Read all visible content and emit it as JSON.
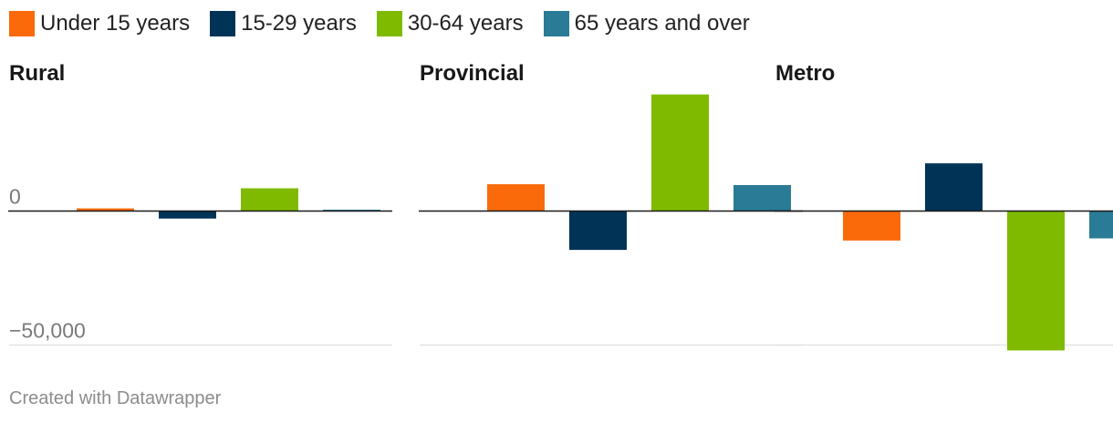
{
  "chart_data": {
    "type": "bar",
    "title": "",
    "series": [
      {
        "name": "Under 15 years",
        "color": "#fa6a0b"
      },
      {
        "name": "15-29 years",
        "color": "#003356"
      },
      {
        "name": "30-64 years",
        "color": "#7fba00"
      },
      {
        "name": "65 years and over",
        "color": "#2a7b96"
      }
    ],
    "panels": [
      {
        "name": "Rural",
        "values": [
          1000,
          -2800,
          8500,
          500
        ]
      },
      {
        "name": "Provincial",
        "values": [
          10000,
          -14500,
          43500,
          9700
        ]
      },
      {
        "name": "Metro",
        "values": [
          -11000,
          17800,
          -52000,
          -10200
        ]
      }
    ],
    "ylim": [
      -50000,
      50000
    ],
    "y_ticks": [
      {
        "value": 0,
        "label": "0"
      },
      {
        "value": -50000,
        "label": "−50,000"
      }
    ],
    "grid": true,
    "legend_position": "top-left"
  },
  "footer": {
    "credit": "Created with Datawrapper"
  }
}
